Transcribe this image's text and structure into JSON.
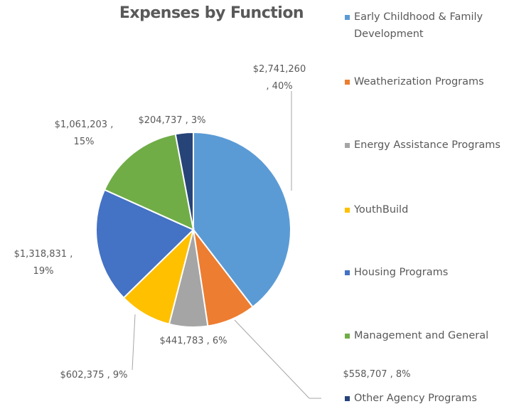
{
  "chart_data": {
    "type": "pie",
    "title": "Expenses by Function",
    "categories": [
      "Early Childhood & Family Development",
      "Weatherization Programs",
      "Energy Assistance Programs",
      "YouthBuild",
      "Housing Programs",
      "Management and General",
      "Other Agency Programs"
    ],
    "values": [
      2741260,
      558707,
      441783,
      602375,
      1318831,
      1061203,
      204737
    ],
    "value_labels": [
      "$2,741,260 , 40%",
      "$558,707 , 8%",
      "$441,783 , 6%",
      "$602,375 , 9%",
      "$1,318,831 , 19%",
      "$1,061,203 , 15%",
      "$204,737 , 3%"
    ],
    "colors": [
      "#5b9bd5",
      "#ed7d31",
      "#a5a5a5",
      "#ffc000",
      "#4472c4",
      "#70ad47",
      "#264478"
    ],
    "legend": "right"
  }
}
